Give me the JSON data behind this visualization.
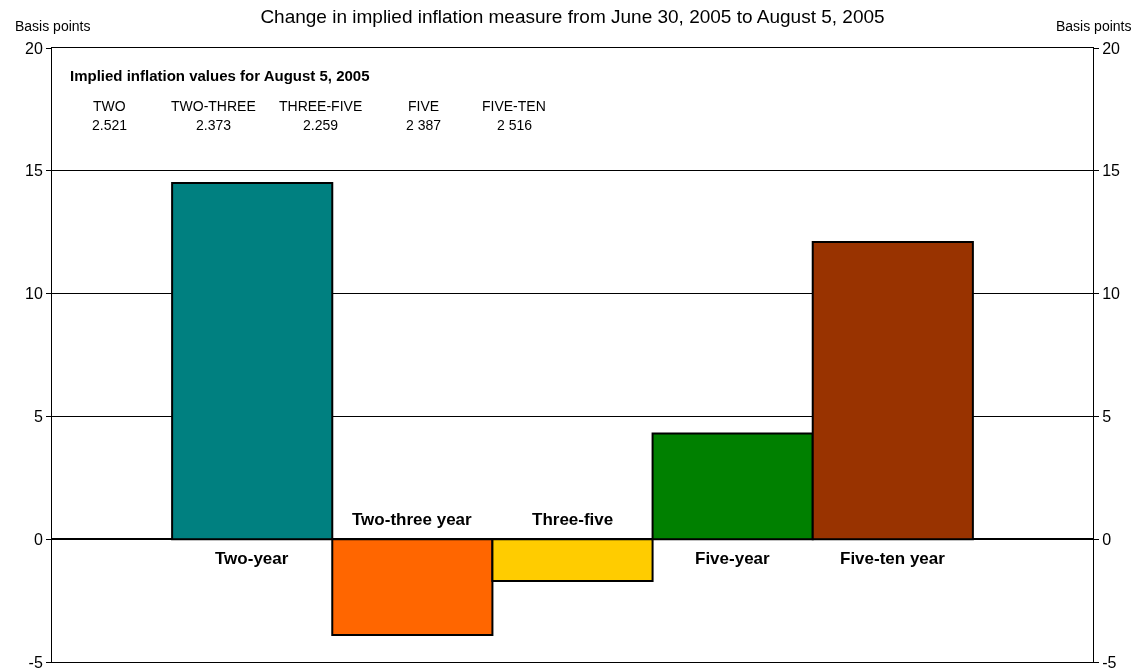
{
  "chart_data": {
    "type": "bar",
    "title": "Change in implied inflation measure from June 30, 2005 to August 5, 2005",
    "ylabel": "Basis points",
    "y2label": "Basis points",
    "categories": [
      "Two-year",
      "Two-three year",
      "Three-five",
      "Five-year",
      "Five-ten year"
    ],
    "values": [
      14.5,
      -3.9,
      -1.7,
      4.3,
      12.1
    ],
    "colors": [
      "#008080",
      "#ff6600",
      "#ffcc00",
      "#008000",
      "#993300"
    ],
    "ylim": [
      -5,
      20
    ],
    "yticks": [
      -5,
      0,
      5,
      10,
      15,
      20
    ],
    "y2lim": [
      -5,
      20
    ],
    "y2ticks": [
      -5,
      0,
      5,
      10,
      15,
      20
    ],
    "grid": "y",
    "annotations": [
      "Implied inflation values for August 5, 2005",
      "TWO",
      "2.521",
      "TWO-THREE",
      "2.373",
      "THREE-FIVE",
      "2.259",
      "FIVE",
      "2 387",
      "FIVE-TEN",
      "2 516"
    ]
  }
}
